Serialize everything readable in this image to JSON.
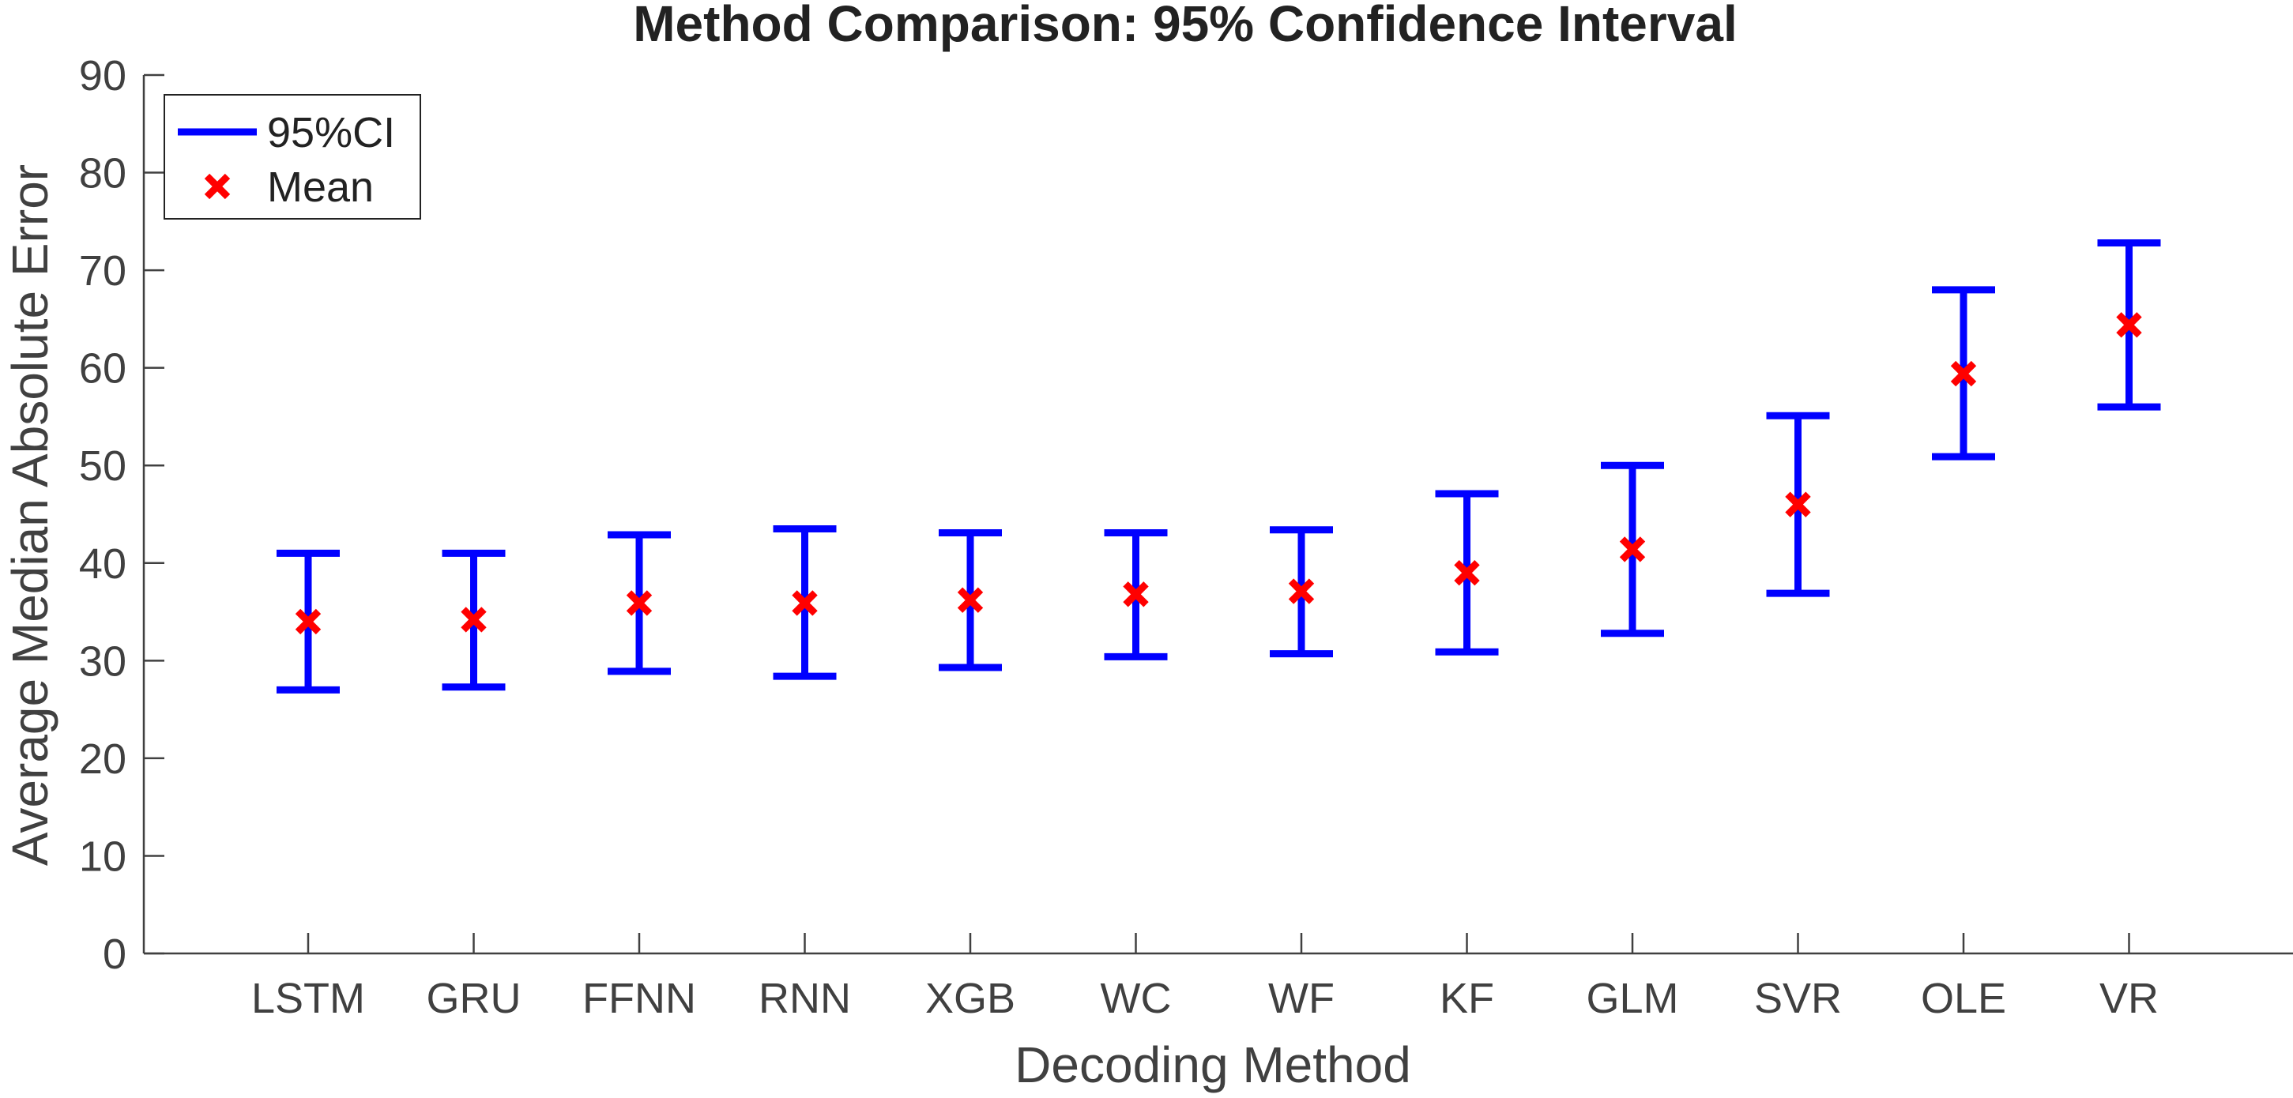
{
  "chart_data": {
    "type": "errorbar",
    "title": "Method Comparison: 95% Confidence Interval",
    "xlabel": "Decoding Method",
    "ylabel": "Average Median Absolute Error",
    "ylim": [
      0,
      90
    ],
    "yticks": [
      "0",
      "10",
      "20",
      "30",
      "40",
      "50",
      "60",
      "70",
      "80",
      "90"
    ],
    "categories": [
      "LSTM",
      "GRU",
      "FFNN",
      "RNN",
      "XGB",
      "WC",
      "WF",
      "KF",
      "GLM",
      "SVR",
      "OLE",
      "VR"
    ],
    "series": [
      {
        "name": "95%CI",
        "color": "#0000ff",
        "lower": [
          27.0,
          27.3,
          28.9,
          28.4,
          29.3,
          30.4,
          30.7,
          30.9,
          32.8,
          36.9,
          50.9,
          56.0
        ],
        "upper": [
          41.0,
          41.0,
          42.9,
          43.5,
          43.1,
          43.1,
          43.4,
          47.1,
          50.0,
          55.1,
          68.0,
          72.8
        ]
      },
      {
        "name": "Mean",
        "color": "#ff0000",
        "values": [
          34.0,
          34.2,
          35.9,
          35.9,
          36.2,
          36.8,
          37.1,
          39.0,
          41.4,
          46.0,
          59.4,
          64.4
        ]
      }
    ],
    "legend": {
      "position": "top-left",
      "entries": [
        "95%CI",
        "Mean"
      ]
    },
    "grid": false
  }
}
